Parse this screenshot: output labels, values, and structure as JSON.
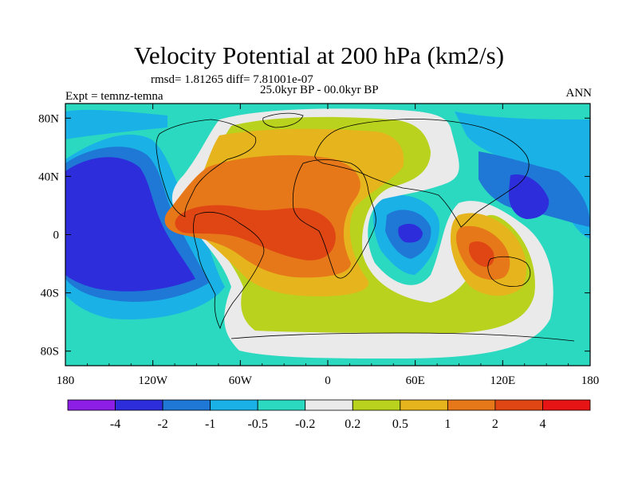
{
  "chart_data": {
    "type": "filled-contour-map",
    "title": "Velocity Potential at 200 hPa (km2/s)",
    "stats": "rmsd= 1.81265 diff= 7.81001e-07",
    "period": "25.0kyr BP - 00.0kyr BP",
    "left_label": "Expt = temnz-temna",
    "right_label": "ANN",
    "x_ticks": [
      "180",
      "120W",
      "60W",
      "0",
      "60E",
      "120E",
      "180"
    ],
    "x_tick_values": [
      -180,
      -120,
      -60,
      0,
      60,
      120,
      180
    ],
    "y_ticks": [
      "80N",
      "40N",
      "0",
      "40S",
      "80S"
    ],
    "y_tick_values": [
      80,
      40,
      0,
      -40,
      -80
    ],
    "xlim": [
      -180,
      180
    ],
    "ylim": [
      -90,
      90
    ],
    "colorbar": {
      "levels": [
        "-4",
        "-2",
        "-1",
        "-0.5",
        "-0.2",
        "0.2",
        "0.5",
        "1",
        "2",
        "4"
      ],
      "colors": [
        "#8d1ee6",
        "#2d2ddb",
        "#1f78d6",
        "#1ab2e6",
        "#2bd9c0",
        "#eaeaea",
        "#b9d21d",
        "#e6b41c",
        "#e6781a",
        "#e04614",
        "#e61414"
      ]
    },
    "regions": [
      {
        "name": "eastern-pacific-minimum",
        "level": "<-2",
        "lon": -142,
        "lat": 5,
        "level_index": 1
      },
      {
        "name": "indian-ocean-minimum",
        "level": "-2 to -1",
        "lon": 55,
        "lat": 2,
        "level_index": 2
      },
      {
        "name": "western-pacific-minimum",
        "level": "-2 to -1",
        "lon": 140,
        "lat": 20,
        "level_index": 2
      },
      {
        "name": "atlantic-maximum",
        "level": "2 to 4",
        "lon": -15,
        "lat": 5,
        "level_index": 9
      },
      {
        "name": "south-america-maximum",
        "level": "2 to 4",
        "lon": -75,
        "lat": 5,
        "level_index": 9
      },
      {
        "name": "maritime-continent-maximum",
        "level": "1 to 2",
        "lon": 100,
        "lat": -10,
        "level_index": 8
      }
    ]
  }
}
